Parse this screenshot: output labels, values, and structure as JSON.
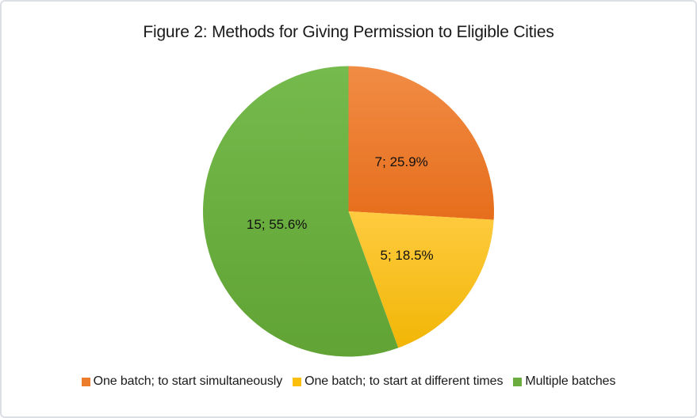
{
  "window": {
    "background": "#ffffff",
    "border_color": "#dcdfe5"
  },
  "title": "Figure 2: Methods for Giving Permission to Eligible Cities",
  "chart_data": {
    "type": "pie",
    "title": "Figure 2: Methods for Giving Permission to Eligible Cities",
    "total": 27,
    "start_angle_deg": 0,
    "direction": "clockwise",
    "legend_position": "bottom",
    "data_label_format": "count; percent",
    "slices": [
      {
        "name": "One batch; to start simultaneously",
        "value": 7,
        "percent": 25.9,
        "label": "7; 25.9%",
        "color": "#EC7D2D",
        "color_top": "#F18C45",
        "color_bottom": "#E66E1C"
      },
      {
        "name": "One batch; to start at different times",
        "value": 5,
        "percent": 18.5,
        "label": "5; 18.5%",
        "color": "#FCBF0D",
        "color_top": "#FFCB40",
        "color_bottom": "#F1B606"
      },
      {
        "name": "Multiple batches",
        "value": 15,
        "percent": 55.6,
        "label": "15; 55.6%",
        "color": "#6BAE3F",
        "color_top": "#75BA4C",
        "color_bottom": "#61A335"
      }
    ]
  }
}
